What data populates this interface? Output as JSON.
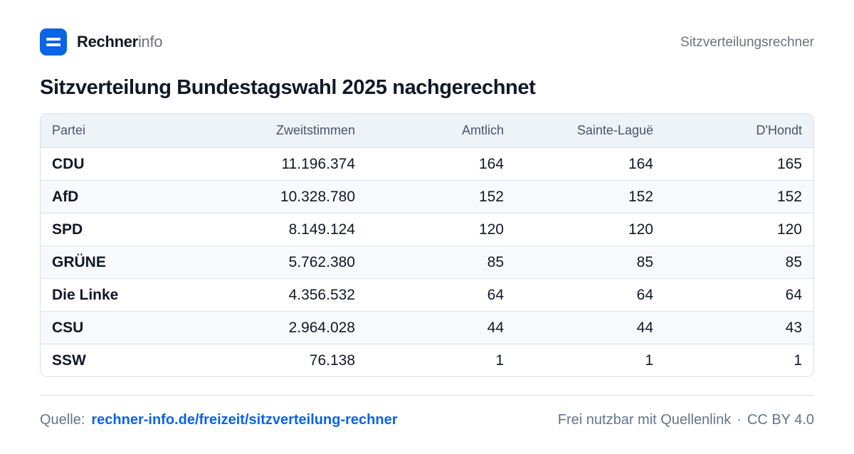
{
  "header": {
    "brand_strong": "Rechner",
    "brand_light": "info",
    "right_label": "Sitzverteilungsrechner"
  },
  "page": {
    "title": "Sitzverteilung Bundestagswahl 2025 nachgerechnet"
  },
  "table": {
    "headers": [
      "Partei",
      "Zweitstimmen",
      "Amtlich",
      "Sainte-Laguë",
      "D'Hondt"
    ],
    "rows": [
      [
        "CDU",
        "11.196.374",
        "164",
        "164",
        "165"
      ],
      [
        "AfD",
        "10.328.780",
        "152",
        "152",
        "152"
      ],
      [
        "SPD",
        "8.149.124",
        "120",
        "120",
        "120"
      ],
      [
        "GRÜNE",
        "5.762.380",
        "85",
        "85",
        "85"
      ],
      [
        "Die Linke",
        "4.356.532",
        "64",
        "64",
        "64"
      ],
      [
        "CSU",
        "2.964.028",
        "44",
        "44",
        "43"
      ],
      [
        "SSW",
        "76.138",
        "1",
        "1",
        "1"
      ]
    ]
  },
  "footer": {
    "source_label": "Quelle:",
    "source_link": "rechner-info.de/freizeit/sitzverteilung-rechner",
    "usage_text": "Frei nutzbar mit Quellenlink",
    "separator": "·",
    "license": "CC BY 4.0"
  },
  "colors": {
    "accent": "#0b63e6",
    "text": "#111827",
    "muted": "#64748b",
    "border": "#d8dee7",
    "header_bg": "#eef3f8",
    "striped_row_bg": "#f7f9fc"
  },
  "icons": {
    "brand_logo": "stacked-bars-logo-icon"
  }
}
